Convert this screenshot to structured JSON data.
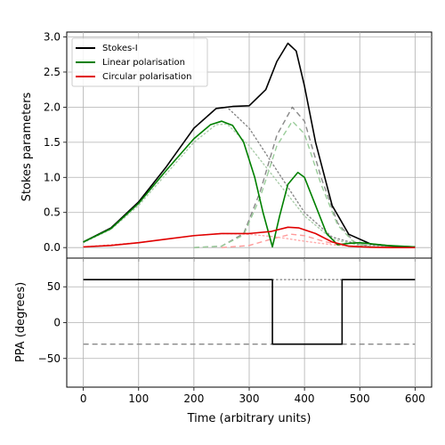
{
  "chart_data": [
    {
      "type": "line",
      "panel": "top",
      "xlabel": "",
      "ylabel": "Stokes parameters",
      "xlim": [
        -30,
        630
      ],
      "ylim": [
        -0.15,
        3.07
      ],
      "xticks": [
        0,
        100,
        200,
        300,
        400,
        500,
        600
      ],
      "yticks": [
        0.0,
        0.5,
        1.0,
        1.5,
        2.0,
        2.5,
        3.0
      ],
      "ytick_labels": [
        "0.0",
        "0.5",
        "1.0",
        "1.5",
        "2.0",
        "2.5",
        "3.0"
      ],
      "grid": true,
      "legend_position": "top-left",
      "legend": [
        "Stokes-I",
        "Linear polarisation",
        "Circular polarisation"
      ],
      "series": [
        {
          "name": "Stokes-I",
          "color": "#000000",
          "style": "solid",
          "x": [
            0,
            50,
            100,
            150,
            200,
            240,
            270,
            300,
            330,
            350,
            370,
            385,
            400,
            420,
            450,
            480,
            520,
            560,
            600
          ],
          "y": [
            0.08,
            0.28,
            0.65,
            1.15,
            1.7,
            1.98,
            2.01,
            2.02,
            2.25,
            2.65,
            2.91,
            2.8,
            2.3,
            1.5,
            0.6,
            0.19,
            0.05,
            0.02,
            0.01
          ]
        },
        {
          "name": "Linear polarisation",
          "color": "#008000",
          "style": "solid",
          "x": [
            0,
            50,
            100,
            150,
            200,
            230,
            250,
            270,
            290,
            310,
            325,
            342,
            355,
            370,
            388,
            400,
            420,
            440,
            460,
            480,
            500,
            550,
            600
          ],
          "y": [
            0.08,
            0.27,
            0.63,
            1.1,
            1.55,
            1.75,
            1.8,
            1.74,
            1.5,
            1.0,
            0.5,
            0.01,
            0.45,
            0.9,
            1.07,
            1.0,
            0.6,
            0.2,
            0.04,
            0.06,
            0.07,
            0.03,
            0.01
          ]
        },
        {
          "name": "Circular polarisation",
          "color": "#e00000",
          "style": "solid",
          "x": [
            0,
            50,
            100,
            150,
            200,
            250,
            300,
            340,
            370,
            390,
            420,
            450,
            480,
            520,
            560,
            600
          ],
          "y": [
            0.01,
            0.03,
            0.07,
            0.12,
            0.17,
            0.2,
            0.2,
            0.23,
            0.29,
            0.28,
            0.2,
            0.08,
            0.02,
            0.005,
            0.0,
            0.0
          ]
        },
        {
          "color": "#888888",
          "style": "dotted",
          "x": [
            0,
            50,
            100,
            150,
            200,
            240,
            260,
            300,
            350,
            400,
            450,
            500,
            550,
            600
          ],
          "y": [
            0.08,
            0.28,
            0.65,
            1.15,
            1.7,
            1.98,
            2.0,
            1.7,
            1.1,
            0.5,
            0.15,
            0.04,
            0.01,
            0.005
          ]
        },
        {
          "color": "#aaccaa",
          "style": "dotted",
          "x": [
            0,
            50,
            100,
            150,
            200,
            240,
            260,
            300,
            350,
            400,
            450,
            500,
            550,
            600
          ],
          "y": [
            0.07,
            0.26,
            0.6,
            1.05,
            1.5,
            1.75,
            1.76,
            1.45,
            0.95,
            0.45,
            0.12,
            0.03,
            0.01,
            0.005
          ]
        },
        {
          "color": "#888888",
          "style": "dashed",
          "x": [
            200,
            250,
            290,
            320,
            350,
            378,
            400,
            430,
            460,
            490,
            520,
            600
          ],
          "y": [
            0.0,
            0.02,
            0.2,
            0.8,
            1.6,
            2.0,
            1.8,
            1.0,
            0.35,
            0.08,
            0.01,
            0.0
          ]
        },
        {
          "color": "#99cc99",
          "style": "dashed",
          "x": [
            200,
            250,
            290,
            320,
            350,
            378,
            400,
            430,
            460,
            490,
            520,
            600
          ],
          "y": [
            0.0,
            0.02,
            0.18,
            0.72,
            1.45,
            1.8,
            1.62,
            0.9,
            0.32,
            0.07,
            0.01,
            0.0
          ]
        },
        {
          "color": "#ff9999",
          "style": "dashed",
          "x": [
            250,
            300,
            340,
            375,
            400,
            430,
            460,
            500,
            600
          ],
          "y": [
            0.0,
            0.03,
            0.12,
            0.19,
            0.17,
            0.1,
            0.04,
            0.01,
            0.0
          ]
        },
        {
          "color": "#ffaaaa",
          "style": "dotted",
          "x": [
            0,
            100,
            200,
            250,
            300,
            350,
            400,
            450,
            500,
            600
          ],
          "y": [
            0.01,
            0.07,
            0.17,
            0.2,
            0.19,
            0.15,
            0.09,
            0.04,
            0.01,
            0.0
          ]
        }
      ]
    },
    {
      "type": "line",
      "panel": "bottom",
      "xlabel": "Time (arbitrary units)",
      "ylabel": "PPA (degrees)",
      "xlim": [
        -30,
        630
      ],
      "ylim": [
        -90,
        90
      ],
      "xticks": [
        0,
        100,
        200,
        300,
        400,
        500,
        600
      ],
      "xtick_labels": [
        "0",
        "100",
        "200",
        "300",
        "400",
        "500",
        "600"
      ],
      "yticks": [
        -50,
        0,
        50
      ],
      "ytick_labels": [
        "−50",
        "0",
        "50"
      ],
      "grid": true,
      "series": [
        {
          "color": "#000000",
          "style": "solid",
          "x": [
            0,
            342,
            342,
            468,
            468,
            600
          ],
          "y": [
            60,
            60,
            -30,
            -30,
            60,
            60
          ]
        },
        {
          "color": "#888888",
          "style": "dotted",
          "x": [
            342,
            468
          ],
          "y": [
            60,
            60
          ]
        },
        {
          "color": "#888888",
          "style": "dashed",
          "x": [
            0,
            600
          ],
          "y": [
            -30,
            -30
          ]
        }
      ]
    }
  ]
}
